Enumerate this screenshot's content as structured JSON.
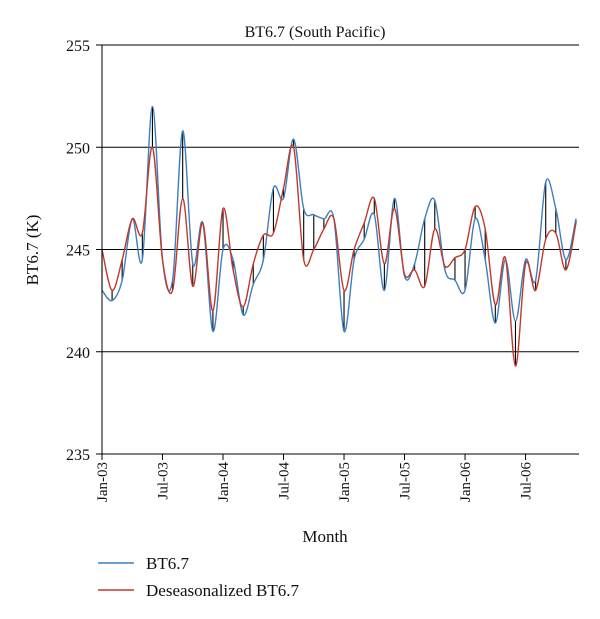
{
  "chart_data": {
    "type": "line",
    "title": "BT6.7 (South Pacific)",
    "xlabel": "Month",
    "ylabel": "BT6.7 (K)",
    "ylim": [
      235,
      255
    ],
    "yticks": [
      235,
      240,
      245,
      250,
      255
    ],
    "grid": "horizontal",
    "legend_position": "bottom",
    "x_ticks": [
      {
        "label": "Jan-03",
        "month_index": 0
      },
      {
        "label": "Jul-03",
        "month_index": 6
      },
      {
        "label": "Jan-04",
        "month_index": 12
      },
      {
        "label": "Jul-04",
        "month_index": 18
      },
      {
        "label": "Jan-05",
        "month_index": 24
      },
      {
        "label": "Jul-05",
        "month_index": 30
      },
      {
        "label": "Jan-06",
        "month_index": 36
      },
      {
        "label": "Jul-06",
        "month_index": 42
      }
    ],
    "x": [
      0,
      1,
      2,
      3,
      4,
      5,
      6,
      7,
      8,
      9,
      10,
      11,
      12,
      13,
      14,
      15,
      16,
      17,
      18,
      19,
      20,
      21,
      22,
      23,
      24,
      25,
      26,
      27,
      28,
      29,
      30,
      31,
      32,
      33,
      34,
      35,
      36,
      37,
      38,
      39,
      40,
      41,
      42,
      43,
      44,
      45,
      46,
      47
    ],
    "series": [
      {
        "name": "BT6.7",
        "color": "#3d7fbf",
        "values": [
          243.0,
          242.5,
          243.5,
          246.5,
          244.5,
          252.0,
          244.5,
          243.5,
          250.8,
          244.3,
          246.3,
          241.0,
          245.0,
          244.5,
          241.8,
          243.3,
          244.5,
          248.0,
          247.5,
          250.4,
          247.0,
          246.7,
          246.5,
          246.5,
          241.0,
          244.5,
          245.5,
          246.7,
          243.0,
          247.5,
          243.7,
          244.3,
          246.5,
          247.4,
          244.0,
          243.5,
          243.0,
          246.5,
          244.5,
          241.4,
          244.5,
          241.5,
          244.5,
          243.5,
          248.3,
          247.0,
          244.5,
          246.5
        ]
      },
      {
        "name": "Deseasonalized BT6.7",
        "color": "#c0392b",
        "values": [
          245.0,
          243.0,
          244.5,
          246.5,
          245.8,
          250.0,
          244.5,
          243.0,
          247.5,
          243.2,
          246.3,
          242.0,
          247.0,
          244.0,
          242.2,
          244.3,
          245.7,
          245.8,
          248.0,
          250.0,
          244.5,
          245.0,
          246.0,
          246.5,
          243.0,
          245.0,
          246.3,
          247.5,
          244.3,
          247.0,
          243.8,
          244.0,
          243.2,
          246.0,
          244.2,
          244.6,
          245.0,
          247.1,
          246.0,
          242.3,
          244.6,
          239.3,
          244.3,
          243.0,
          245.5,
          245.8,
          244.0,
          246.3
        ]
      }
    ]
  }
}
